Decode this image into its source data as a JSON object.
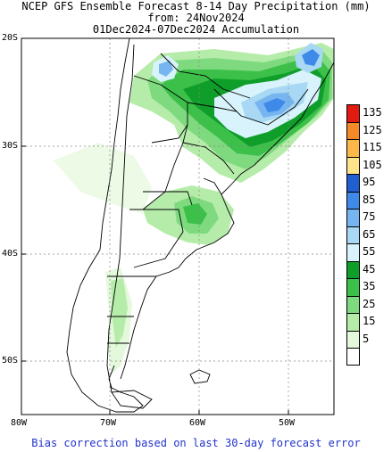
{
  "title": {
    "line1": "NCEP GFS Ensemble Forecast 8-14 Day Precipitation (mm)",
    "line2": "from: 24Nov2024",
    "line3": "01Dec2024-07Dec2024 Accumulation"
  },
  "axes": {
    "lat_labels": [
      "20S",
      "30S",
      "40S",
      "50S"
    ],
    "lon_labels": [
      "80W",
      "70W",
      "60W",
      "50W"
    ]
  },
  "legend": {
    "levels": [
      {
        "label": "135",
        "color": "#e21b10"
      },
      {
        "label": "125",
        "color": "#f58b28"
      },
      {
        "label": "115",
        "color": "#fdb84b"
      },
      {
        "label": "105",
        "color": "#fde48a"
      },
      {
        "label": "95",
        "color": "#1f5fd0"
      },
      {
        "label": "85",
        "color": "#3f8ae8"
      },
      {
        "label": "75",
        "color": "#76b5ef"
      },
      {
        "label": "65",
        "color": "#a8d8f4"
      },
      {
        "label": "55",
        "color": "#d8f3fb"
      },
      {
        "label": "45",
        "color": "#0f9e2a"
      },
      {
        "label": "35",
        "color": "#3cc04a"
      },
      {
        "label": "25",
        "color": "#7fda7f"
      },
      {
        "label": "15",
        "color": "#b6ecaa"
      },
      {
        "label": "5",
        "color": "#e4f8dc"
      },
      {
        "label": "",
        "color": "#ffffff"
      }
    ]
  },
  "footer": "Bias correction based on last 30-day forecast error"
}
